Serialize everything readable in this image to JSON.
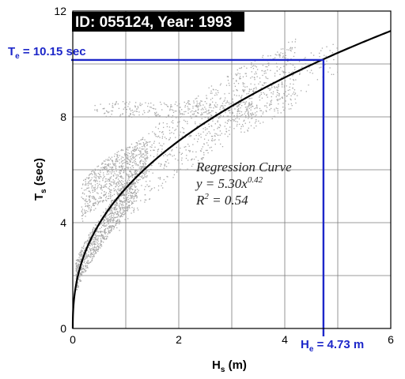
{
  "chart_data": {
    "type": "scatter",
    "title": "ID: 055124, Year: 1993",
    "xlabel": {
      "main": "H",
      "sub": "s",
      "unit": "(m)"
    },
    "ylabel": {
      "main": "T",
      "sub": "s",
      "unit": "(sec)"
    },
    "xlim": [
      0,
      6
    ],
    "ylim": [
      0,
      12
    ],
    "xticks": [
      0,
      2,
      4,
      6
    ],
    "yticks": [
      0,
      4,
      8,
      12
    ],
    "grid": true,
    "scatter_color": "#a8a8a8",
    "regression": {
      "coef": 5.3,
      "exponent": 0.42,
      "color": "#000000",
      "title": "Regression Curve",
      "equation_main": "y = 5.30x",
      "equation_sup": "0.42",
      "r2_main": "R",
      "r2_sup": "2",
      "r2_value": " = 0.54"
    },
    "design_point": {
      "H": 4.73,
      "T": 10.15,
      "color": "#1d27c9",
      "t_label": {
        "main": "T",
        "sub": "e",
        "rest": " = 10.15 sec"
      },
      "h_label": {
        "main": "H",
        "sub": "e",
        "rest": " = 4.73 m"
      }
    },
    "clusters": [
      {
        "name": "lower-band",
        "x": [
          0.05,
          1.2
        ],
        "y": [
          1.2,
          6.0
        ]
      },
      {
        "name": "upper-band",
        "x": [
          0.15,
          1.4
        ],
        "y": [
          4.0,
          7.8
        ]
      },
      {
        "name": "period-8",
        "x": [
          0.4,
          3.4
        ],
        "y": [
          8.0,
          8.6
        ]
      },
      {
        "name": "main-cloud",
        "x": [
          0.8,
          4.2
        ],
        "y": [
          5.0,
          10.0
        ]
      },
      {
        "name": "tail",
        "x": [
          2.5,
          5.0
        ],
        "y": [
          9.0,
          10.8
        ]
      }
    ]
  }
}
